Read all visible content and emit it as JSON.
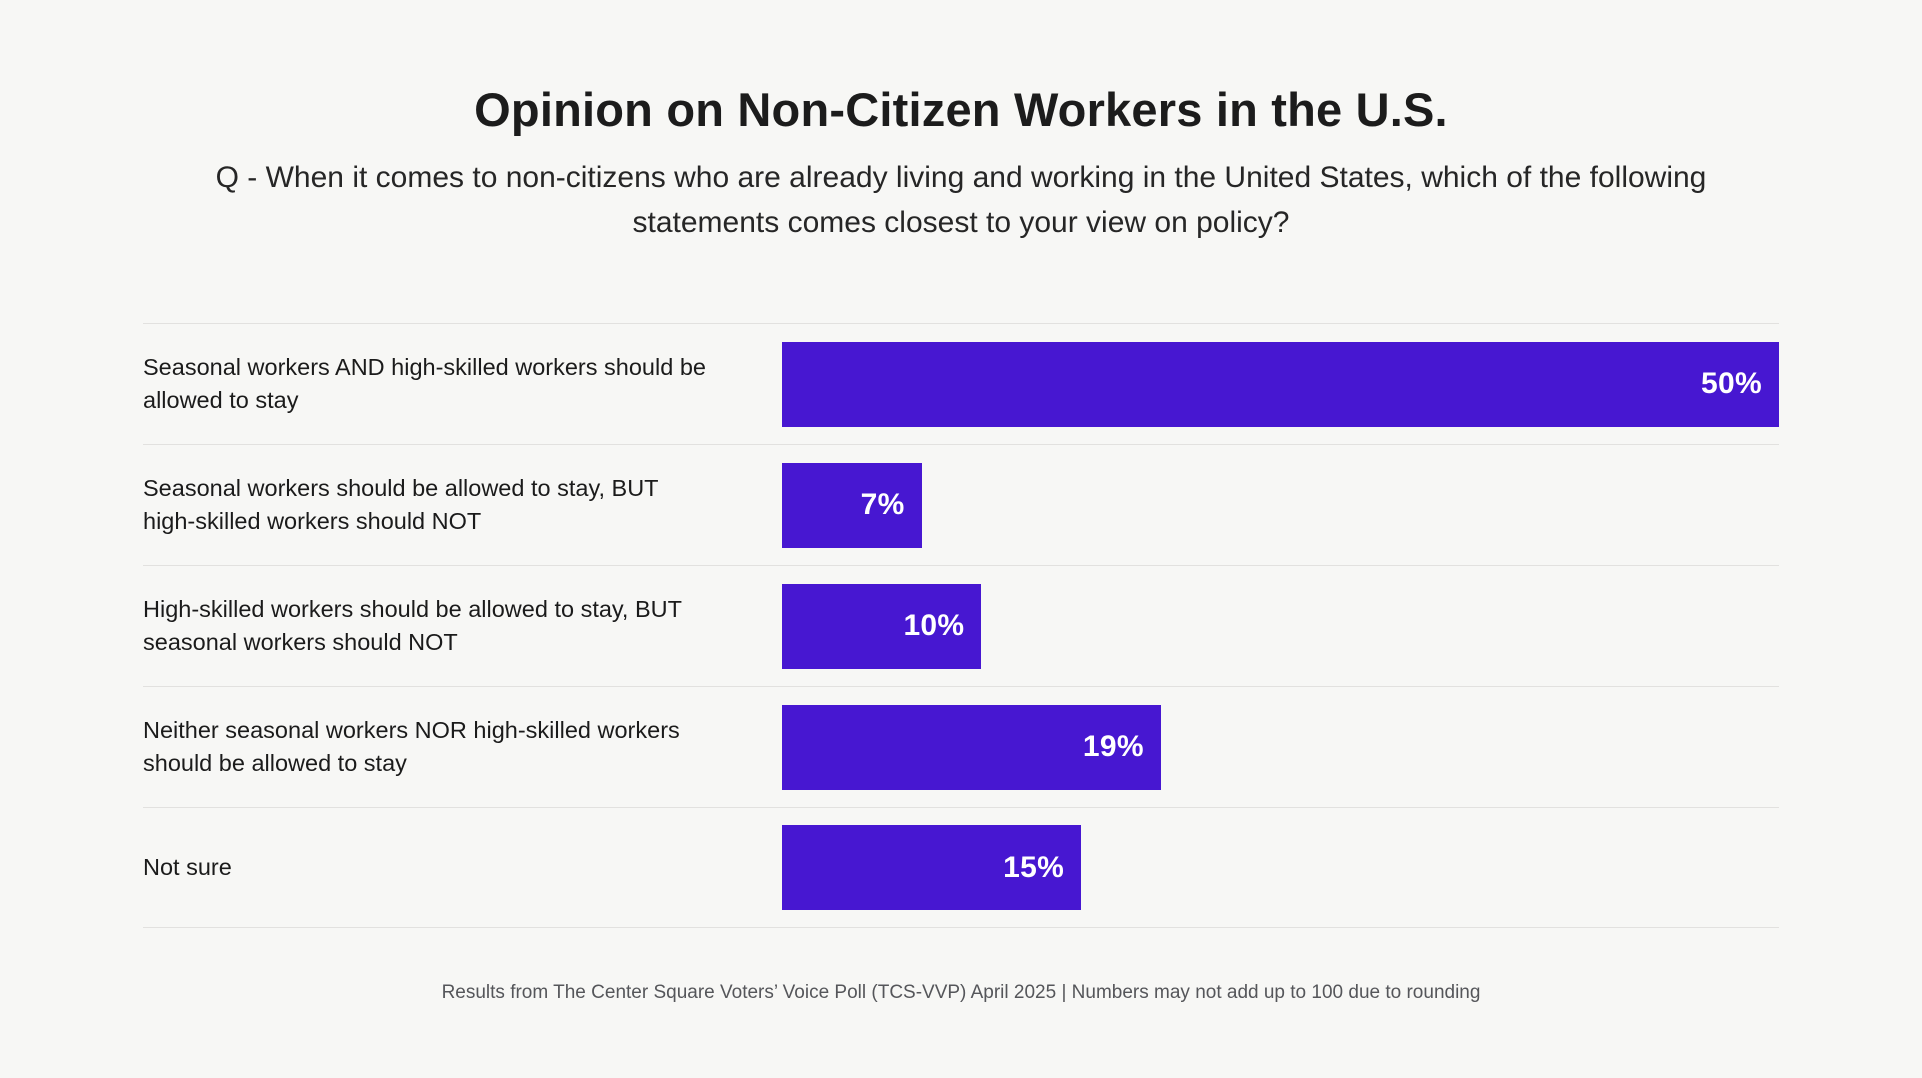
{
  "chart_data": {
    "type": "bar",
    "orientation": "horizontal",
    "title": "Opinion on Non-Citizen Workers in the U.S.",
    "subtitle": "Q - When it comes to non-citizens who are already living and working in the United States, which of the following statements comes closest to your view on policy?",
    "categories": [
      "Seasonal workers AND high-skilled workers should be allowed to stay",
      "Seasonal workers should be allowed to stay, BUT high-skilled workers should NOT",
      "High-skilled workers should be allowed to stay, BUT seasonal workers should NOT",
      "Neither seasonal workers NOR high-skilled workers should be allowed to stay",
      "Not sure"
    ],
    "values": [
      50,
      7,
      10,
      19,
      15
    ],
    "value_labels": [
      "50%",
      "7%",
      "10%",
      "19%",
      "15%"
    ],
    "xlim": [
      0,
      50
    ],
    "grid": "horizontal row separators only, no axes or tick labels",
    "legend": "none",
    "colors": {
      "bar": "#4717D1",
      "value_text": "#FFFFFF",
      "background": "#F7F7F5",
      "text": "#1C1C1C",
      "separator": "#E2E1DF",
      "footnote": "#55565A"
    }
  },
  "footer": {
    "source_note": "Results from The Center Square Voters’ Voice Poll (TCS-VVP) April 2025 | Numbers may not add up to 100 due to rounding"
  }
}
